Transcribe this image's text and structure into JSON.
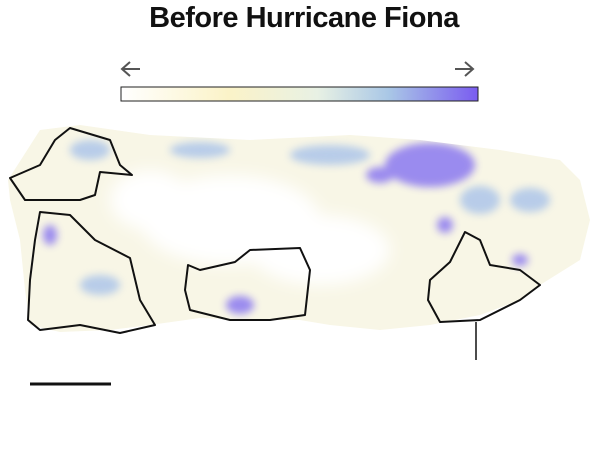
{
  "title": "Before Hurricane Fiona"
}
